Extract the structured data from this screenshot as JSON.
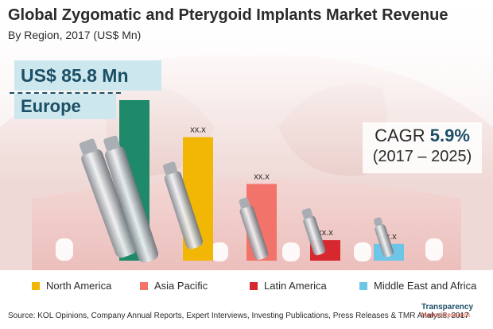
{
  "title": "Global Zygomatic and Pterygoid Implants Market Revenue",
  "subtitle": "By Region, 2017 (US$ Mn)",
  "callout": {
    "value": "US$ 85.8 Mn",
    "label": "Europe"
  },
  "cagr": {
    "prefix": "CAGR",
    "value": "5.9%",
    "period": "(2017 – 2025)"
  },
  "legend": [
    {
      "label": "North America",
      "color": "#f2b705"
    },
    {
      "label": "Asia Pacific",
      "color": "#f2736a"
    },
    {
      "label": "Latin America",
      "color": "#d7282f"
    },
    {
      "label": "Middle East and Africa",
      "color": "#6dc6e8"
    }
  ],
  "source": "Source: KOL Opinions, Company Annual Reports, Expert Interviews, Investing Publications, Press Releases & TMR Analysis,  2017",
  "logo": {
    "line1": "Transparency",
    "line2": "Market Research"
  },
  "chart_data": {
    "type": "bar",
    "categories": [
      "Europe",
      "North America",
      "Asia Pacific",
      "Latin America",
      "Middle East and Africa"
    ],
    "values": [
      85.8,
      66,
      41,
      11,
      9
    ],
    "value_labels": [
      "",
      "xx.x",
      "xx.x",
      "xx.x",
      "xx.x"
    ],
    "colors": [
      "#1e8a6a",
      "#f2b705",
      "#f2736a",
      "#d7282f",
      "#6dc6e8"
    ],
    "ylim": [
      0,
      85.8
    ]
  }
}
